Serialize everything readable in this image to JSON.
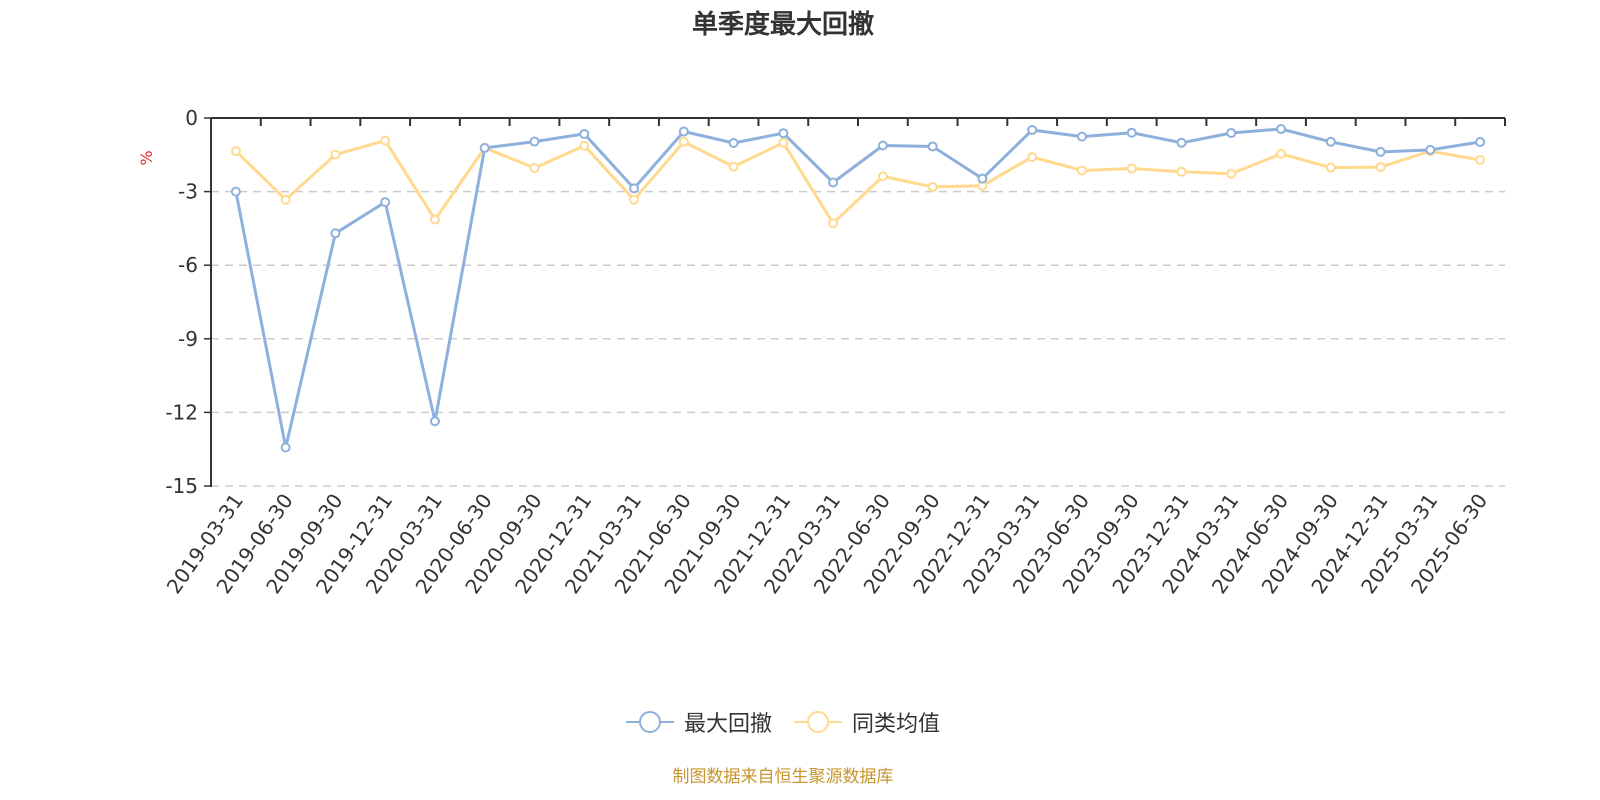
{
  "title": "单季度最大回撤",
  "source_note": "制图数据来自恒生聚源数据库",
  "y_unit": "%",
  "colors": {
    "series1": "#8eb0dd",
    "series2": "#ffd98e",
    "unit": "#e8262c",
    "source": "#c8952e",
    "grid": "#cccccc",
    "axis": "#333333"
  },
  "legend": [
    {
      "label": "最大回撤"
    },
    {
      "label": "同类均值"
    }
  ],
  "chart_data": {
    "type": "line",
    "title": "单季度最大回撤",
    "xlabel": "",
    "ylabel": "%",
    "ylim": [
      -15,
      0
    ],
    "yticks": [
      0,
      -3,
      -6,
      -9,
      -12,
      -15
    ],
    "grid": "horizontal dashed",
    "legend_position": "bottom",
    "categories": [
      "2019-03-31",
      "2019-06-30",
      "2019-09-30",
      "2019-12-31",
      "2020-03-31",
      "2020-06-30",
      "2020-09-30",
      "2020-12-31",
      "2021-03-31",
      "2021-06-30",
      "2021-09-30",
      "2021-12-31",
      "2022-03-31",
      "2022-06-30",
      "2022-09-30",
      "2022-12-31",
      "2023-03-31",
      "2023-06-30",
      "2023-09-30",
      "2023-12-31",
      "2024-03-31",
      "2024-06-30",
      "2024-09-30",
      "2024-12-31",
      "2025-03-31",
      "2025-06-30"
    ],
    "series": [
      {
        "name": "最大回撤",
        "values": [
          -3.0,
          -13.43,
          -4.7,
          -3.43,
          -12.36,
          -1.22,
          -0.96,
          -0.65,
          -2.87,
          -0.55,
          -1.02,
          -0.62,
          -2.63,
          -1.12,
          -1.16,
          -2.47,
          -0.49,
          -0.76,
          -0.6,
          -1.01,
          -0.61,
          -0.45,
          -0.97,
          -1.38,
          -1.3,
          -0.98
        ]
      },
      {
        "name": "同类均值",
        "values": [
          -1.35,
          -3.33,
          -1.49,
          -0.92,
          -4.14,
          -1.22,
          -2.04,
          -1.13,
          -3.33,
          -0.97,
          -1.98,
          -1.01,
          -4.29,
          -2.38,
          -2.81,
          -2.76,
          -1.59,
          -2.14,
          -2.06,
          -2.19,
          -2.27,
          -1.46,
          -2.02,
          -2.0,
          -1.35,
          -1.71
        ]
      }
    ]
  }
}
